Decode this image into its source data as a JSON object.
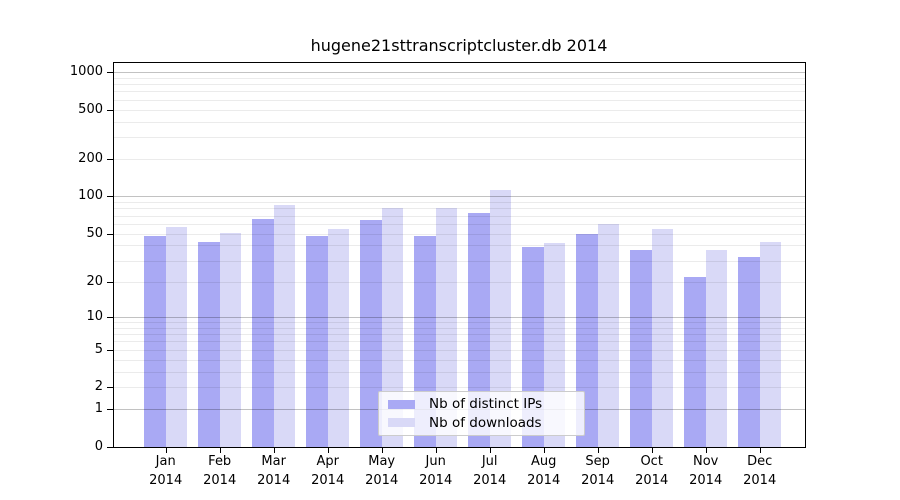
{
  "title": "hugene21sttranscriptcluster.db 2014",
  "chart_data": {
    "type": "bar",
    "title": "hugene21sttranscriptcluster.db 2014",
    "scale": "log1p",
    "categories": [
      "Jan",
      "Feb",
      "Mar",
      "Apr",
      "May",
      "Jun",
      "Jul",
      "Aug",
      "Sep",
      "Oct",
      "Nov",
      "Dec"
    ],
    "x_tick_year": "2014",
    "series": [
      {
        "name": "Nb of distinct IPs",
        "color": "#a9a9f4",
        "values": [
          48,
          43,
          66,
          48,
          64,
          48,
          74,
          39,
          50,
          37,
          22,
          32
        ]
      },
      {
        "name": "Nb of downloads",
        "color": "#d9d9f7",
        "values": [
          57,
          51,
          85,
          55,
          80,
          80,
          113,
          42,
          60,
          54,
          37,
          43
        ]
      }
    ],
    "yticks": [
      1000,
      500,
      200,
      100,
      50,
      20,
      10,
      5,
      2,
      1,
      0
    ],
    "ylim": [
      0,
      1200
    ],
    "xlabel": "",
    "ylabel": "",
    "grid": "horizontal log major+minor",
    "legend_position": "inside bottom-center",
    "colors": {
      "major_gridline": "rgba(0,0,0,0.24)",
      "minor_gridline": "rgba(0,0,0,0.08)",
      "axis": "#000000",
      "background": "#ffffff"
    }
  }
}
